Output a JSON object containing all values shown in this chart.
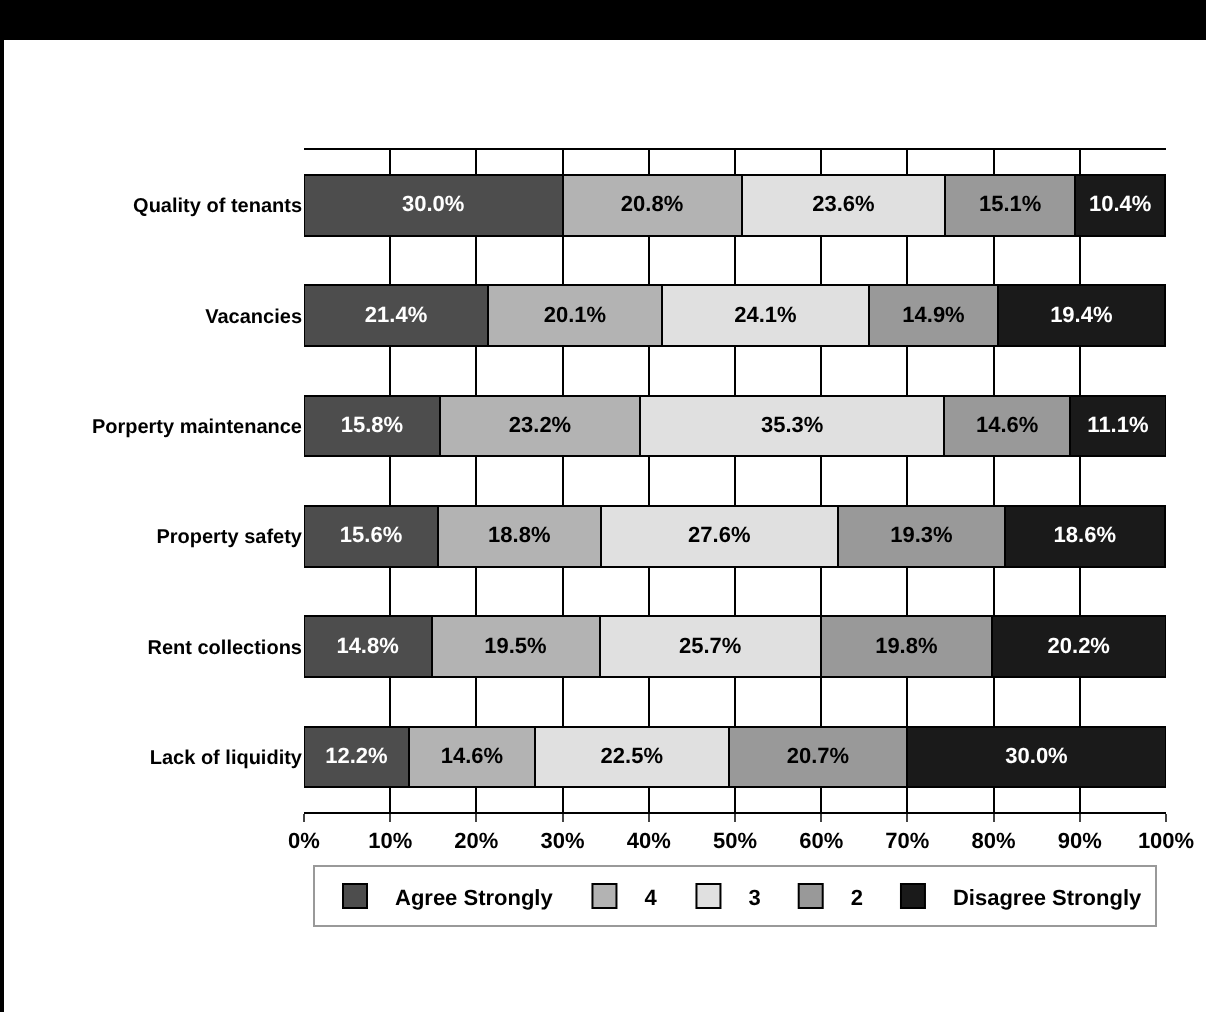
{
  "chart_data": {
    "type": "bar",
    "orientation": "horizontal",
    "stacked": true,
    "grid": "x",
    "legend": "bottom",
    "categories": [
      "Quality of tenants",
      "Vacancies",
      "Porperty maintenance",
      "Property safety",
      "Rent collections",
      "Lack of liquidity"
    ],
    "series": [
      {
        "name": "Agree Strongly",
        "color": "#4d4d4d",
        "values": [
          30.0,
          21.4,
          15.8,
          15.6,
          14.8,
          12.2
        ],
        "value_labels": [
          "30.0%",
          "21.4%",
          "15.8%",
          "15.6%",
          "14.8%",
          "12.2%"
        ]
      },
      {
        "name": "4",
        "color": "#b3b3b3",
        "values": [
          20.8,
          20.1,
          23.2,
          18.8,
          19.5,
          14.6
        ],
        "value_labels": [
          "20.8%",
          "20.1%",
          "23.2%",
          "18.8%",
          "19.5%",
          "14.6%"
        ]
      },
      {
        "name": "3",
        "color": "#e0e0e0",
        "values": [
          23.6,
          24.1,
          35.3,
          27.6,
          25.7,
          22.5
        ],
        "value_labels": [
          "23.6%",
          "24.1%",
          "35.3%",
          "27.6%",
          "25.7%",
          "22.5%"
        ]
      },
      {
        "name": "2",
        "color": "#999999",
        "values": [
          15.1,
          14.9,
          14.6,
          19.3,
          19.8,
          20.7
        ],
        "value_labels": [
          "15.1%",
          "14.9%",
          "14.6%",
          "19.3%",
          "19.8%",
          "20.7%"
        ]
      },
      {
        "name": "Disagree Strongly",
        "color": "#1a1a1a",
        "values": [
          10.4,
          19.4,
          11.1,
          18.6,
          20.2,
          30.0
        ],
        "value_labels": [
          "10.4%",
          "19.4%",
          "11.1%",
          "18.6%",
          "20.2%",
          "30.0%"
        ]
      }
    ],
    "xlim": [
      0,
      100
    ],
    "xticks": [
      {
        "value": 0,
        "label": "0%"
      },
      {
        "value": 10,
        "label": "10%"
      },
      {
        "value": 20,
        "label": "20%"
      },
      {
        "value": 30,
        "label": "30%"
      },
      {
        "value": 40,
        "label": "40%"
      },
      {
        "value": 50,
        "label": "50%"
      },
      {
        "value": 60,
        "label": "60%"
      },
      {
        "value": 70,
        "label": "70%"
      },
      {
        "value": 80,
        "label": "80%"
      },
      {
        "value": 90,
        "label": "90%"
      },
      {
        "value": 100,
        "label": "100%"
      }
    ]
  }
}
